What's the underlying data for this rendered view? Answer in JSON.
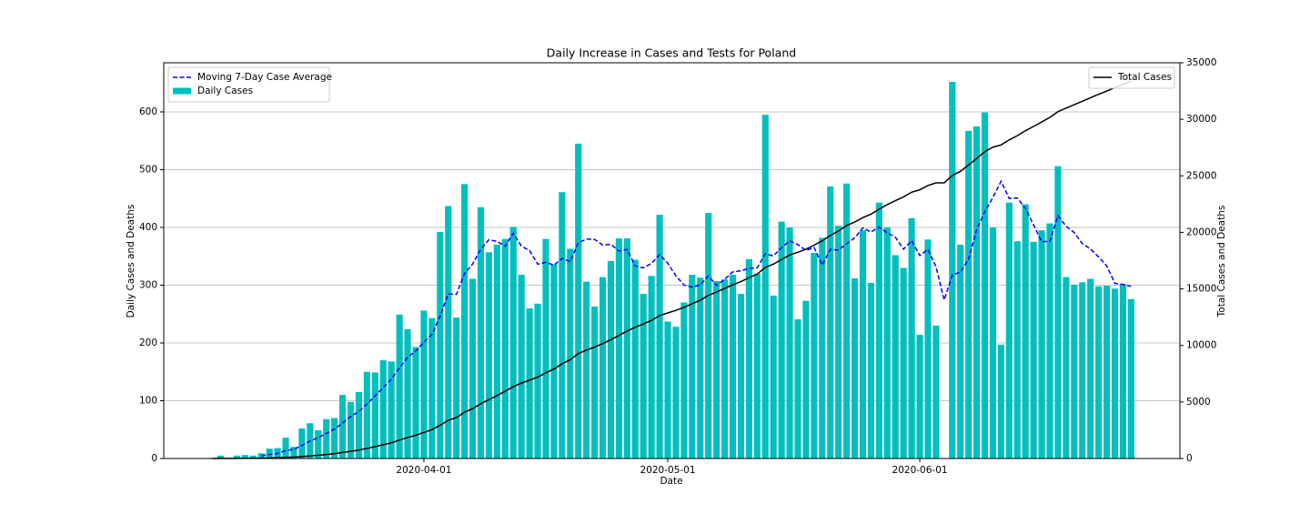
{
  "chart_data": {
    "type": "bar",
    "title": "Daily Increase in Cases and Tests for Poland",
    "xlabel": "Date",
    "ylabel": "Daily Cases and Deaths",
    "y2label": "Total Cases and Deaths",
    "x": [
      "2020-03-06",
      "2020-03-07",
      "2020-03-08",
      "2020-03-09",
      "2020-03-10",
      "2020-03-11",
      "2020-03-12",
      "2020-03-13",
      "2020-03-14",
      "2020-03-15",
      "2020-03-16",
      "2020-03-17",
      "2020-03-18",
      "2020-03-19",
      "2020-03-20",
      "2020-03-21",
      "2020-03-22",
      "2020-03-23",
      "2020-03-24",
      "2020-03-25",
      "2020-03-26",
      "2020-03-27",
      "2020-03-28",
      "2020-03-29",
      "2020-03-30",
      "2020-03-31",
      "2020-04-01",
      "2020-04-02",
      "2020-04-03",
      "2020-04-04",
      "2020-04-05",
      "2020-04-06",
      "2020-04-07",
      "2020-04-08",
      "2020-04-09",
      "2020-04-10",
      "2020-04-11",
      "2020-04-12",
      "2020-04-13",
      "2020-04-14",
      "2020-04-15",
      "2020-04-16",
      "2020-04-17",
      "2020-04-18",
      "2020-04-19",
      "2020-04-20",
      "2020-04-21",
      "2020-04-22",
      "2020-04-23",
      "2020-04-24",
      "2020-04-25",
      "2020-04-26",
      "2020-04-27",
      "2020-04-28",
      "2020-04-29",
      "2020-04-30",
      "2020-05-01",
      "2020-05-02",
      "2020-05-03",
      "2020-05-04",
      "2020-05-05",
      "2020-05-06",
      "2020-05-07",
      "2020-05-08",
      "2020-05-09",
      "2020-05-10",
      "2020-05-11",
      "2020-05-12",
      "2020-05-13",
      "2020-05-14",
      "2020-05-15",
      "2020-05-16",
      "2020-05-17",
      "2020-05-18",
      "2020-05-19",
      "2020-05-20",
      "2020-05-21",
      "2020-05-22",
      "2020-05-23",
      "2020-05-24",
      "2020-05-25",
      "2020-05-26",
      "2020-05-27",
      "2020-05-28",
      "2020-05-29",
      "2020-05-30",
      "2020-05-31",
      "2020-06-01",
      "2020-06-02",
      "2020-06-03",
      "2020-06-04",
      "2020-06-05",
      "2020-06-06",
      "2020-06-07",
      "2020-06-08",
      "2020-06-09",
      "2020-06-10",
      "2020-06-11",
      "2020-06-12",
      "2020-06-13",
      "2020-06-14",
      "2020-06-15",
      "2020-06-16",
      "2020-06-17",
      "2020-06-18",
      "2020-06-19",
      "2020-06-20",
      "2020-06-21",
      "2020-06-22",
      "2020-06-23",
      "2020-06-24",
      "2020-06-25",
      "2020-06-26",
      "2020-06-27"
    ],
    "series": [
      {
        "name": "Moving 7-Day Case Average",
        "type": "line",
        "color": "#0000ff",
        "dashed": true,
        "axis": "y",
        "values": [
          null,
          null,
          null,
          null,
          null,
          null,
          4.6,
          6.9,
          8.7,
          13.7,
          15.9,
          22.4,
          30.4,
          36.1,
          43.4,
          50.9,
          61.4,
          72.6,
          81.6,
          94.3,
          108.6,
          123.1,
          137.1,
          157.0,
          175.0,
          186.1,
          201.3,
          214.7,
          246.4,
          284.9,
          284.1,
          320,
          336.9,
          362.4,
          378.7,
          375.6,
          367.4,
          389.9,
          367.4,
          360.1,
          336.3,
          339.6,
          334.7,
          346.3,
          340.9,
          373.3,
          379.9,
          379.1,
          369.7,
          370.6,
          359.1,
          361.7,
          333,
          330,
          337.6,
          353,
          338,
          316.1,
          300.3,
          296.6,
          300.6,
          316.1,
          299.7,
          310.1,
          323,
          325.1,
          329,
          330,
          354.3,
          350.7,
          365,
          376.7,
          370.4,
          360.1,
          365.3,
          334.9,
          361.9,
          360.9,
          371.7,
          381.9,
          399.3,
          391.9,
          400.6,
          390.4,
          383.1,
          362.3,
          377.1,
          351.3,
          362,
          331.6,
          274.4,
          317.3,
          323,
          344.6,
          396.1,
          427.6,
          451.9,
          480,
          450.1,
          451,
          432.9,
          404.3,
          375.1,
          376.1,
          420.3,
          401.9,
          391.1,
          371.9,
          362.7,
          348.9,
          333.4,
          303.1,
          301.4,
          297.9
        ]
      },
      {
        "name": "Daily Cases",
        "type": "bar",
        "color": "#00bfbf",
        "axis": "y",
        "values": [
          1,
          5,
          1,
          5,
          6,
          5,
          9,
          17,
          18,
          36,
          20,
          52,
          61,
          49,
          68,
          70,
          110,
          98,
          115,
          150,
          149,
          170,
          168,
          249,
          224,
          193,
          256,
          243,
          392,
          437,
          244,
          475,
          311,
          435,
          357,
          370,
          380,
          401,
          318,
          260,
          268,
          380,
          336,
          461,
          363,
          545,
          306,
          263,
          314,
          342,
          381,
          381,
          344,
          285,
          316,
          422,
          237,
          228,
          270,
          318,
          313,
          425,
          307,
          310,
          318,
          285,
          345,
          320,
          595,
          282,
          410,
          400,
          241,
          273,
          356,
          382,
          471,
          403,
          476,
          312,
          395,
          304,
          443,
          400,
          352,
          330,
          416,
          214,
          379,
          230,
          0,
          652,
          370,
          567,
          575,
          599,
          400,
          197,
          443,
          376,
          440,
          375,
          395,
          407,
          506,
          314,
          301,
          305,
          311,
          298,
          299,
          294,
          302,
          276
        ]
      },
      {
        "name": "Total Cases",
        "type": "line",
        "color": "#000000",
        "dashed": false,
        "axis": "y2",
        "values": [
          1,
          6,
          7,
          12,
          18,
          23,
          32,
          49,
          67,
          103,
          123,
          175,
          236,
          285,
          353,
          423,
          533,
          631,
          746,
          896,
          1045,
          1215,
          1383,
          1632,
          1856,
          2049,
          2305,
          2548,
          2940,
          3377,
          3621,
          4096,
          4407,
          4842,
          5199,
          5569,
          5949,
          6350,
          6668,
          6928,
          7196,
          7576,
          7912,
          8373,
          8736,
          9281,
          9587,
          9850,
          10164,
          10506,
          10887,
          11268,
          11612,
          11897,
          12213,
          12635,
          12872,
          13100,
          13370,
          13688,
          14001,
          14426,
          14733,
          15043,
          15361,
          15646,
          15991,
          16311,
          16906,
          17188,
          17598,
          17998,
          18239,
          18512,
          18868,
          19250,
          19721,
          20124,
          20600,
          20912,
          21307,
          21611,
          22054,
          22454,
          22806,
          23136,
          23552,
          23766,
          24145,
          24375,
          24375,
          25027,
          25397,
          25964,
          26539,
          27138,
          27538,
          27735,
          28178,
          28554,
          28994,
          29369,
          29764,
          30171,
          30677,
          30991,
          31292,
          31597,
          31908,
          32206,
          32505,
          32799,
          33101,
          33377
        ]
      }
    ],
    "xlim": [
      "2020-02-29",
      "2020-07-03"
    ],
    "xticks": [
      "2020-04-01",
      "2020-05-01",
      "2020-06-01"
    ],
    "ylim": [
      0,
      685
    ],
    "yticks": [
      0,
      100,
      200,
      300,
      400,
      500,
      600
    ],
    "y2lim": [
      0,
      35000
    ],
    "y2ticks": [
      0,
      5000,
      10000,
      15000,
      20000,
      25000,
      30000,
      35000
    ],
    "grid": true,
    "legend": {
      "y": "upper left",
      "y2": "upper right"
    }
  }
}
